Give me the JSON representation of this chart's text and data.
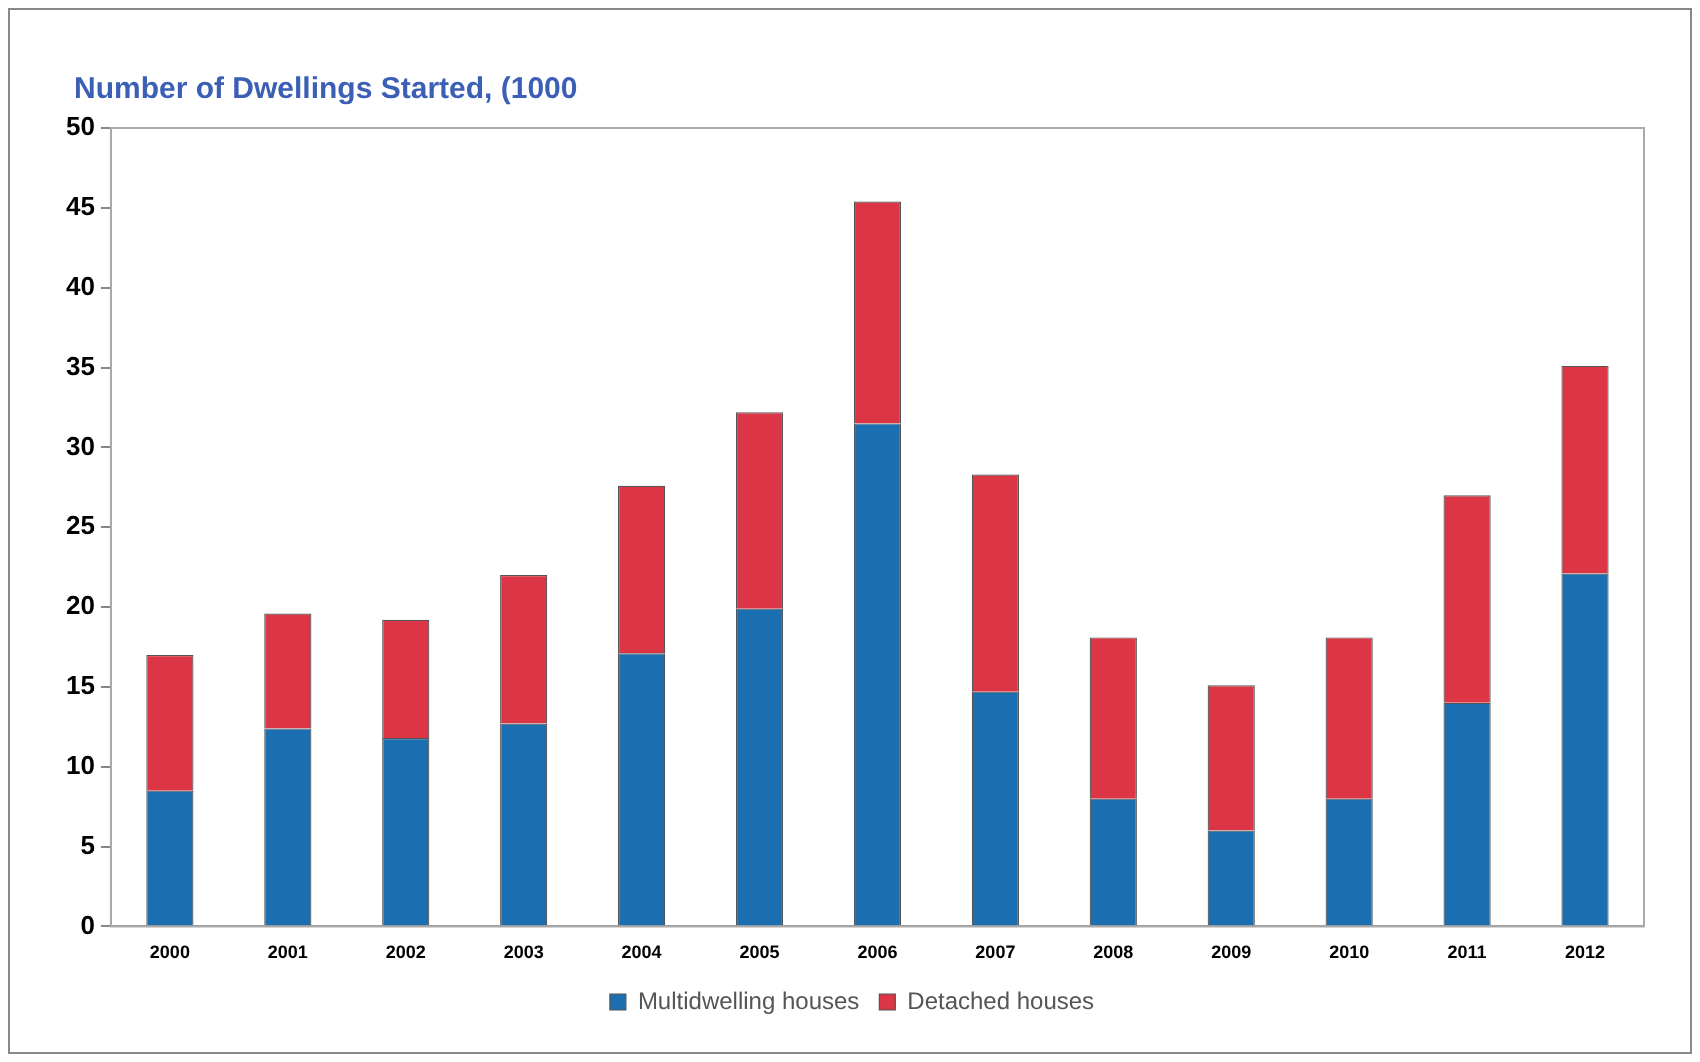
{
  "chart_data": {
    "type": "bar",
    "title": "Number of Dwellings Started, (1000",
    "categories": [
      "2000",
      "2001",
      "2002",
      "2003",
      "2004",
      "2005",
      "2006",
      "2007",
      "2008",
      "2009",
      "2010",
      "2011",
      "2012"
    ],
    "series": [
      {
        "name": "Multidwelling houses",
        "color": "#1b6fb0",
        "values": [
          8.5,
          12.4,
          11.8,
          12.7,
          17.1,
          19.9,
          31.5,
          14.7,
          8.0,
          6.0,
          8.0,
          14.0,
          22.1
        ]
      },
      {
        "name": "Detached houses",
        "color": "#dc3545",
        "values": [
          8.5,
          7.2,
          7.4,
          9.3,
          10.5,
          12.3,
          13.9,
          13.6,
          10.1,
          9.1,
          10.1,
          13.0,
          13.0
        ]
      }
    ],
    "stacked": true,
    "ylim": [
      0,
      50
    ],
    "yticks": [
      0,
      5,
      10,
      15,
      20,
      25,
      30,
      35,
      40,
      45,
      50
    ],
    "grid": false,
    "legend": "bottom"
  }
}
